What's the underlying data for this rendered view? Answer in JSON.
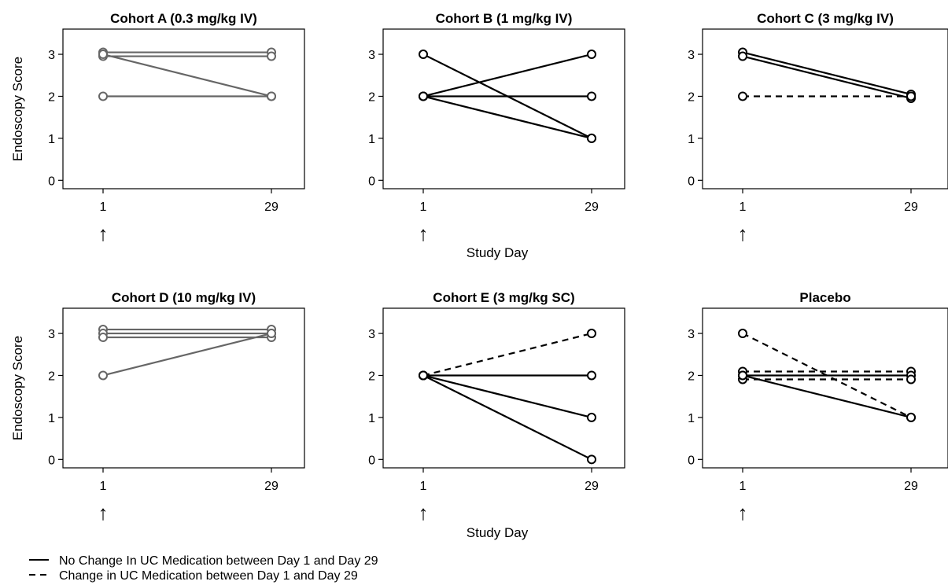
{
  "chart_data": {
    "type": "line",
    "shared_xlabel": "Study Day",
    "ylabel": "Endoscopy Score",
    "x": [
      1,
      29
    ],
    "x_ticks": [
      "1",
      "29"
    ],
    "y_ticks": [
      "0",
      "1",
      "2",
      "3"
    ],
    "ylim": [
      -0.2,
      3.6
    ],
    "dosing_marker": "↑",
    "legend": {
      "placement": "bottom-left",
      "entries": [
        {
          "style": "solid",
          "label": "No Change In UC Medication between Day 1 and Day 29"
        },
        {
          "style": "dashed",
          "label": "Change in UC Medication between Day 1 and Day 29"
        }
      ]
    },
    "panels": [
      {
        "title": "Cohort A (0.3 mg/kg IV)",
        "color": "#666666",
        "series": [
          {
            "values": [
              3,
              3
            ],
            "style": "solid"
          },
          {
            "values": [
              3,
              3
            ],
            "style": "solid"
          },
          {
            "values": [
              3,
              2
            ],
            "style": "solid"
          },
          {
            "values": [
              2,
              2
            ],
            "style": "solid"
          }
        ]
      },
      {
        "title": "Cohort B (1 mg/kg IV)",
        "color": "#000000",
        "series": [
          {
            "values": [
              3,
              1
            ],
            "style": "solid"
          },
          {
            "values": [
              2,
              3
            ],
            "style": "solid"
          },
          {
            "values": [
              2,
              2
            ],
            "style": "solid"
          },
          {
            "values": [
              2,
              1
            ],
            "style": "solid"
          }
        ]
      },
      {
        "title": "Cohort C (3 mg/kg IV)",
        "color": "#000000",
        "series": [
          {
            "values": [
              3,
              2
            ],
            "style": "solid"
          },
          {
            "values": [
              3,
              2
            ],
            "style": "solid"
          },
          {
            "values": [
              2,
              2
            ],
            "style": "dashed"
          }
        ]
      },
      {
        "title": "Cohort D (10 mg/kg IV)",
        "color": "#666666",
        "series": [
          {
            "values": [
              3,
              3
            ],
            "style": "solid"
          },
          {
            "values": [
              3,
              3
            ],
            "style": "solid"
          },
          {
            "values": [
              3,
              3
            ],
            "style": "solid"
          },
          {
            "values": [
              2,
              3
            ],
            "style": "solid"
          }
        ]
      },
      {
        "title": "Cohort E (3 mg/kg SC)",
        "color": "#000000",
        "series": [
          {
            "values": [
              2,
              3
            ],
            "style": "dashed"
          },
          {
            "values": [
              2,
              2
            ],
            "style": "solid"
          },
          {
            "values": [
              2,
              1
            ],
            "style": "solid"
          },
          {
            "values": [
              2,
              0
            ],
            "style": "solid"
          }
        ]
      },
      {
        "title": "Placebo",
        "color": "#000000",
        "series": [
          {
            "values": [
              3,
              1
            ],
            "style": "dashed"
          },
          {
            "values": [
              2,
              2
            ],
            "style": "dashed"
          },
          {
            "values": [
              2,
              2
            ],
            "style": "solid"
          },
          {
            "values": [
              2,
              2
            ],
            "style": "dashed"
          },
          {
            "values": [
              2,
              1
            ],
            "style": "solid"
          }
        ]
      }
    ]
  }
}
